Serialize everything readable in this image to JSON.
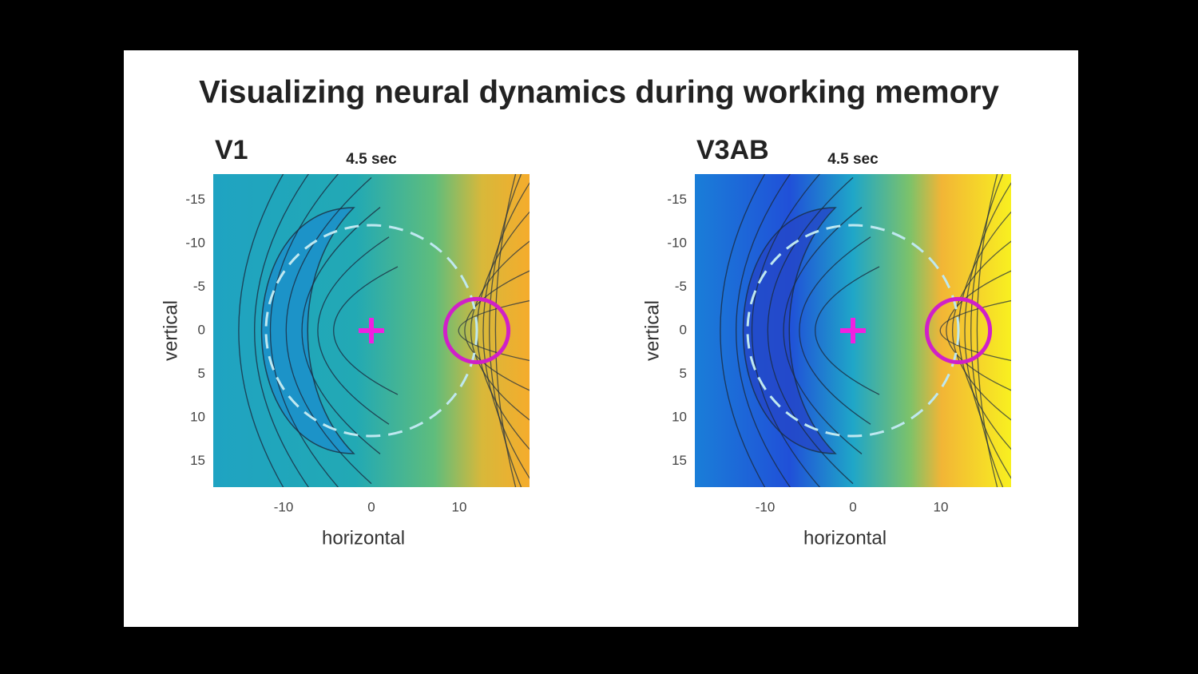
{
  "title": "Visualizing neural dynamics during working memory",
  "chart_data": [
    {
      "type": "contour",
      "title": "V1",
      "subtitle": "4.5 sec",
      "xlabel": "horizontal",
      "ylabel": "vertical",
      "xlim": [
        -18,
        18
      ],
      "ylim": [
        -18,
        18
      ],
      "xticks": [
        -10,
        0,
        10
      ],
      "yticks": [
        -15,
        -10,
        -5,
        0,
        5,
        10,
        15
      ]
    },
    {
      "type": "contour",
      "title": "V3AB",
      "subtitle": "4.5 sec",
      "xlabel": "horizontal",
      "ylabel": "vertical",
      "xlim": [
        -18,
        18
      ],
      "ylim": [
        -18,
        18
      ],
      "xticks": [
        -10,
        0,
        10
      ],
      "yticks": [
        -15,
        -10,
        -5,
        0,
        5,
        10,
        15
      ]
    }
  ]
}
